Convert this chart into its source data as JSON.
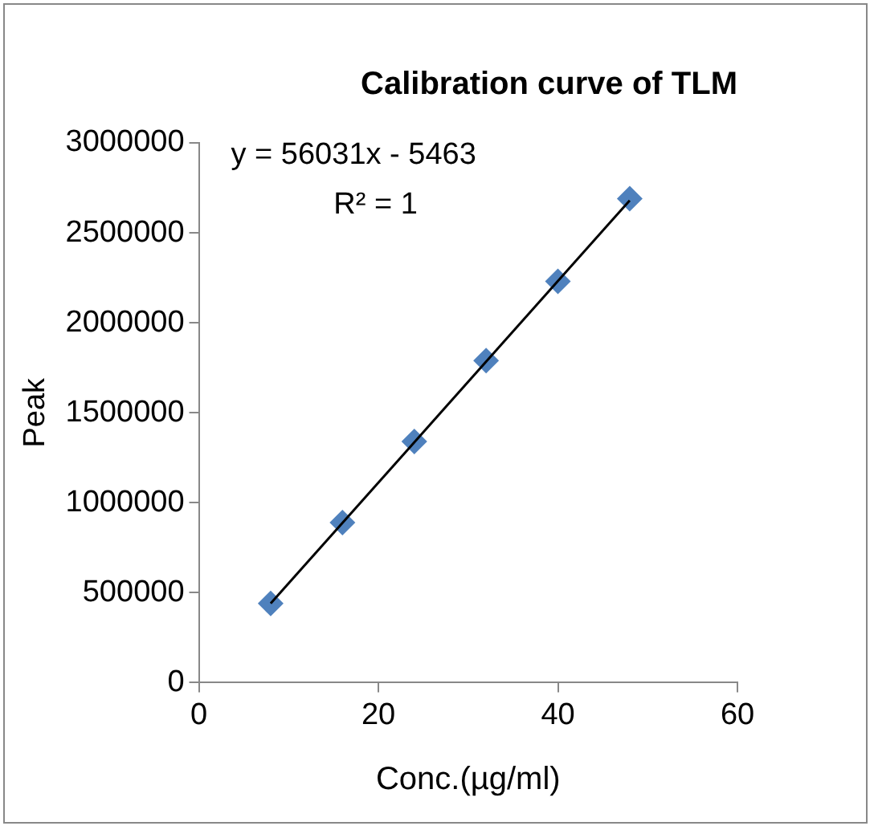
{
  "chart_data": {
    "type": "scatter",
    "title": "Calibration curve of TLM",
    "xlabel": "Conc.(µg/ml)",
    "ylabel": "Peak",
    "series": [
      {
        "type": "scatter",
        "color": "#4f81bd",
        "marker": "diamond",
        "x": [
          8,
          16,
          24,
          32,
          40,
          48
        ],
        "values": [
          440000,
          890000,
          1340000,
          1790000,
          2230000,
          2690000
        ]
      },
      {
        "type": "line",
        "color": "#000000",
        "marker": "none",
        "line_style": "solid",
        "x": [
          8,
          48
        ],
        "values": [
          440000,
          2680000
        ]
      }
    ],
    "xlim": [
      0,
      60
    ],
    "xticks": [
      0,
      20,
      40,
      60
    ],
    "ylim": [
      0,
      3000000
    ],
    "yticks": [
      0,
      500000,
      1000000,
      1500000,
      2000000,
      2500000,
      3000000
    ],
    "grid": false,
    "legend": false,
    "annotations": [
      "y = 56031x - 5463",
      "R² = 1"
    ]
  }
}
